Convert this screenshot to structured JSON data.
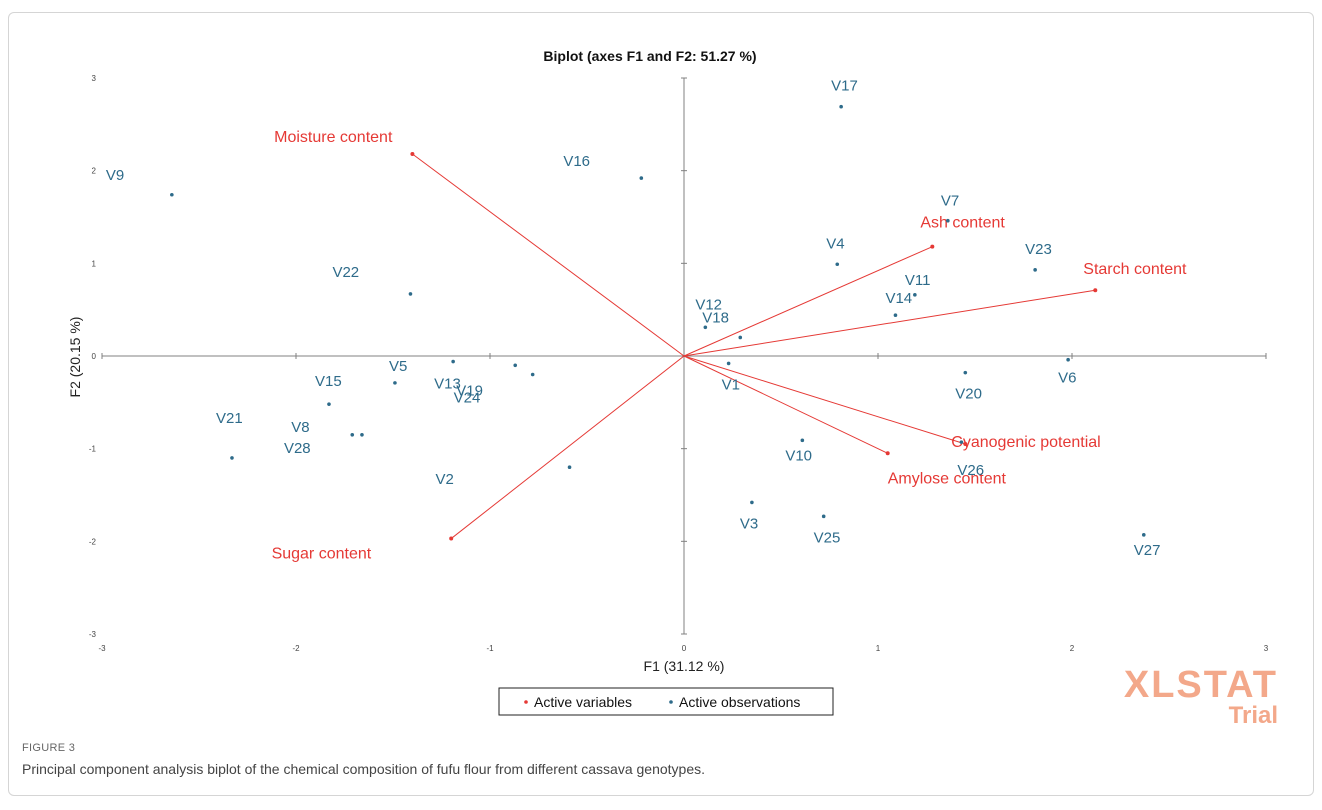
{
  "figure": {
    "label": "FIGURE 3",
    "caption": "Principal component analysis biplot of the chemical composition of fufu flour from different cassava genotypes."
  },
  "watermark": {
    "main": "XLSTAT",
    "sub": "Trial"
  },
  "colors": {
    "variables": "#e53935",
    "observations": "#2e6b8a",
    "axes": "#808080"
  },
  "chart_data": {
    "type": "scatter",
    "title": "Biplot (axes F1 and F2: 51.27 %)",
    "xlabel": "F1 (31.12 %)",
    "ylabel": "F2 (20.15 %)",
    "xlim": [
      -3,
      3
    ],
    "ylim": [
      -3,
      3
    ],
    "xticks": [
      "-3",
      "-2",
      "-1",
      "0",
      "1",
      "2",
      "3"
    ],
    "yticks": [
      "-3",
      "-2",
      "-1",
      "0",
      "1",
      "2",
      "3"
    ],
    "grid": false,
    "legend": {
      "position": "bottom",
      "entries": [
        "Active variables",
        "Active observations"
      ]
    },
    "variables": [
      {
        "name": "Moisture content",
        "x": -1.4,
        "y": 2.18
      },
      {
        "name": "Ash content",
        "x": 1.28,
        "y": 1.18
      },
      {
        "name": "Starch content",
        "x": 2.12,
        "y": 0.71
      },
      {
        "name": "Cyanogenic potential",
        "x": 1.45,
        "y": -0.95
      },
      {
        "name": "Amylose content",
        "x": 1.05,
        "y": -1.05
      },
      {
        "name": "Sugar content",
        "x": -1.2,
        "y": -1.97
      }
    ],
    "observations": [
      {
        "name": "V1",
        "x": 0.23,
        "y": -0.08
      },
      {
        "name": "V2",
        "x": -0.59,
        "y": -1.2
      },
      {
        "name": "V3",
        "x": 0.35,
        "y": -1.58
      },
      {
        "name": "V4",
        "x": 0.79,
        "y": 0.99
      },
      {
        "name": "V5",
        "x": -1.49,
        "y": -0.29
      },
      {
        "name": "V6",
        "x": 1.98,
        "y": -0.04
      },
      {
        "name": "V7",
        "x": 1.36,
        "y": 1.46
      },
      {
        "name": "V8",
        "x": -1.71,
        "y": -0.85
      },
      {
        "name": "V9",
        "x": -2.64,
        "y": 1.74
      },
      {
        "name": "V10",
        "x": 0.61,
        "y": -0.91
      },
      {
        "name": "V11",
        "x": 1.19,
        "y": 0.66
      },
      {
        "name": "V12",
        "x": 0.11,
        "y": 0.31
      },
      {
        "name": "V13",
        "x": -1.19,
        "y": -0.06
      },
      {
        "name": "V14",
        "x": 1.09,
        "y": 0.44
      },
      {
        "name": "V15",
        "x": -1.83,
        "y": -0.52
      },
      {
        "name": "V16",
        "x": -0.22,
        "y": 1.92
      },
      {
        "name": "V17",
        "x": 0.81,
        "y": 2.69
      },
      {
        "name": "V18",
        "x": 0.29,
        "y": 0.2
      },
      {
        "name": "V19",
        "x": -0.87,
        "y": -0.1
      },
      {
        "name": "V20",
        "x": 1.45,
        "y": -0.18
      },
      {
        "name": "V21",
        "x": -2.33,
        "y": -1.1
      },
      {
        "name": "V22",
        "x": -1.41,
        "y": 0.67
      },
      {
        "name": "V23",
        "x": 1.81,
        "y": 0.93
      },
      {
        "name": "V24",
        "x": -0.78,
        "y": -0.2
      },
      {
        "name": "V25",
        "x": 0.72,
        "y": -1.73
      },
      {
        "name": "V26",
        "x": 1.43,
        "y": -0.93
      },
      {
        "name": "V27",
        "x": 2.37,
        "y": -1.93
      },
      {
        "name": "V28",
        "x": -1.66,
        "y": -0.85
      }
    ]
  }
}
